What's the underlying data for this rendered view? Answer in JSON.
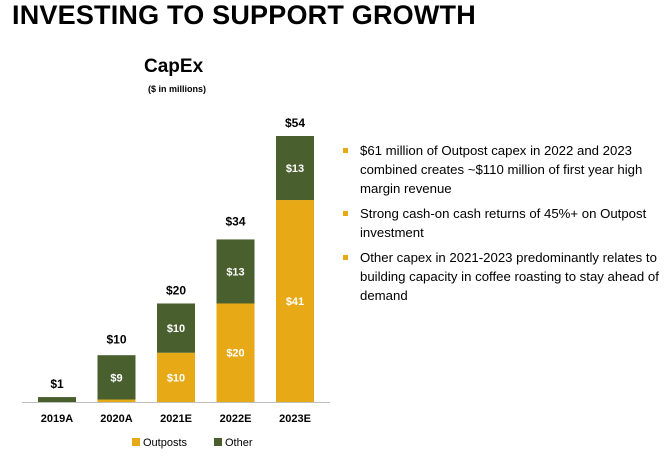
{
  "page": {
    "title": "INVESTING TO SUPPORT GROWTH"
  },
  "bullets": [
    "$61 million of Outpost capex in 2022 and 2023 combined creates ~$110 million of first year high margin revenue",
    "Strong cash-on cash returns of 45%+ on Outpost investment",
    "Other capex in 2021-2023 predominantly relates to building capacity in coffee roasting to stay ahead of demand"
  ],
  "colors": {
    "outposts": "#E8A916",
    "other": "#4A5F2E",
    "bullet": "#E8A916"
  },
  "chart_data": {
    "type": "bar",
    "stacked": true,
    "title": "CapEx",
    "subtitle": "($ in millions)",
    "xlabel": "",
    "ylabel": "",
    "grid": false,
    "legend_position": "bottom",
    "categories": [
      "2019A",
      "2020A",
      "2021E",
      "2022E",
      "2023E"
    ],
    "series": [
      {
        "name": "Outposts",
        "values": [
          0,
          0.5,
          10,
          20,
          41
        ],
        "labels": [
          "",
          "",
          "$10",
          "$20",
          "$41"
        ]
      },
      {
        "name": "Other",
        "values": [
          1,
          9,
          10,
          13,
          13
        ],
        "labels": [
          "",
          "$9",
          "$10",
          "$13",
          "$13"
        ]
      }
    ],
    "totals": [
      1,
      10,
      20,
      34,
      54
    ],
    "total_labels": [
      "$1",
      "$10",
      "$20",
      "$34",
      "$54"
    ],
    "ylim": [
      0,
      54
    ]
  }
}
